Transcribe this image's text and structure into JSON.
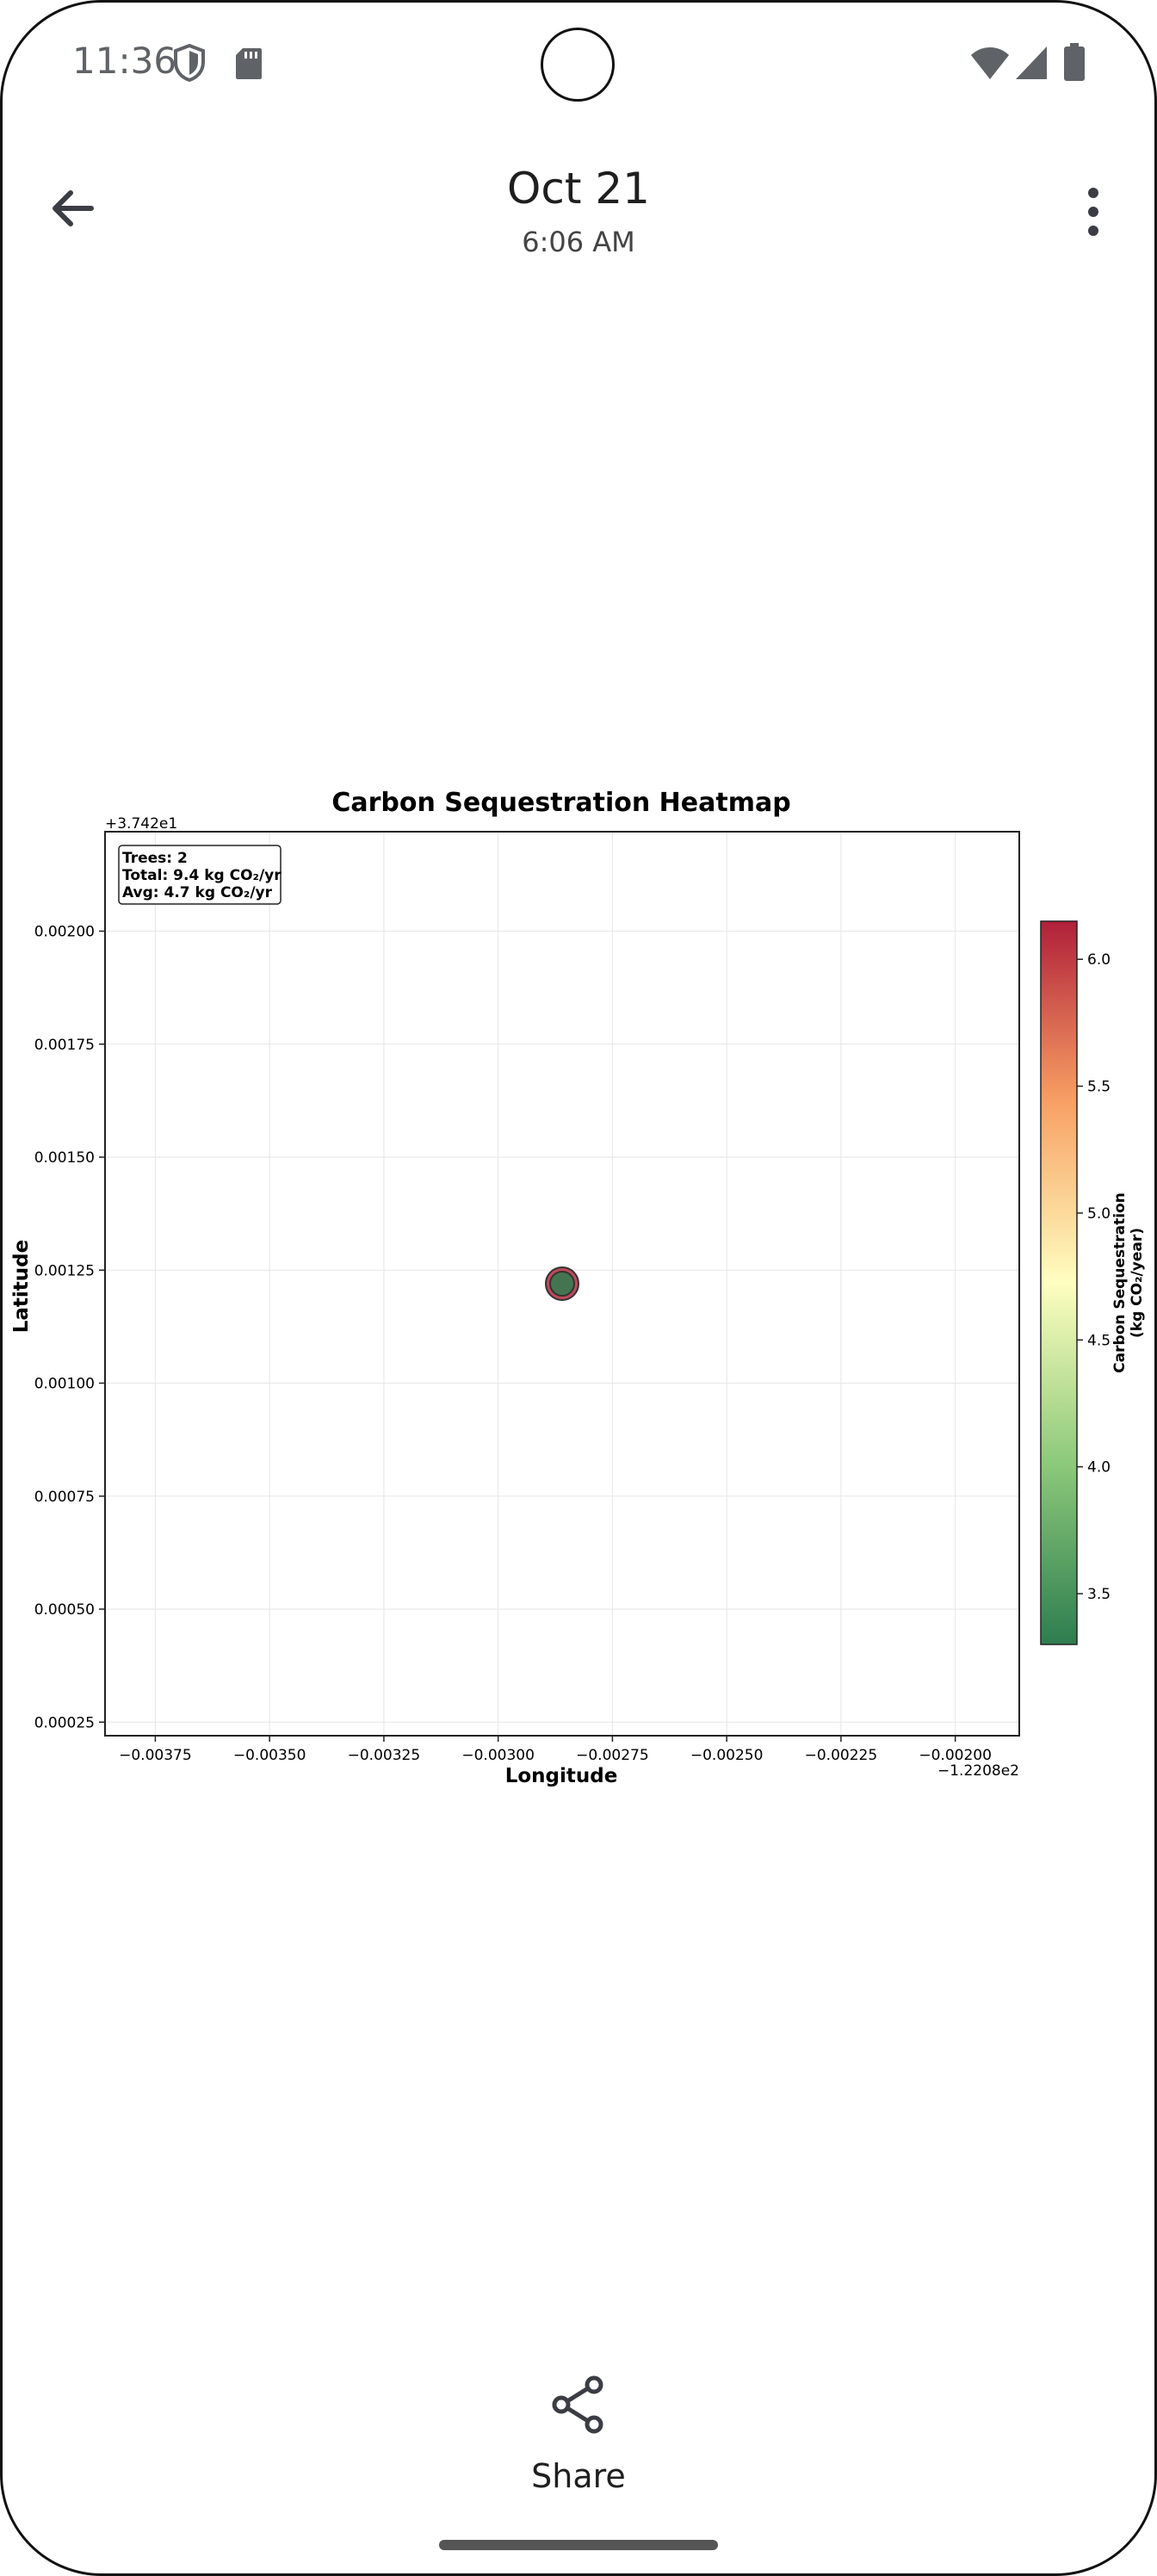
{
  "status_bar": {
    "time": "11:36"
  },
  "app_bar": {
    "date": "Oct 21",
    "time": "6:06 AM"
  },
  "chart_data": {
    "type": "scatter",
    "title": "Carbon Sequestration Heatmap",
    "xlabel": "Longitude",
    "ylabel": "Latitude",
    "x_offset_label": "−1.2208e2",
    "y_offset_label": "+3.742e1",
    "x_ticks": [
      "−0.00375",
      "−0.00350",
      "−0.00325",
      "−0.00300",
      "−0.00275",
      "−0.00250",
      "−0.00225",
      "−0.00200"
    ],
    "y_ticks": [
      "0.00025",
      "0.00050",
      "0.00075",
      "0.00100",
      "0.00125",
      "0.00150",
      "0.00175",
      "0.00200"
    ],
    "xlim": [
      -0.00386,
      -0.00186
    ],
    "ylim": [
      0.00022,
      0.00222
    ],
    "points": [
      {
        "x": -0.00286,
        "y": 0.00122,
        "value": 6.1
      },
      {
        "x": -0.00286,
        "y": 0.00122,
        "value": 3.3
      }
    ],
    "grid": true,
    "annotation": [
      "Trees: 2",
      "Total: 9.4 kg CO₂/yr",
      "Avg: 4.7 kg CO₂/yr"
    ],
    "colorbar": {
      "label_line1": "Carbon Sequestration",
      "label_line2": "(kg CO₂/year)",
      "range": [
        3.3,
        6.15
      ],
      "ticks": [
        "3.5",
        "4.0",
        "4.5",
        "5.0",
        "5.5",
        "6.0"
      ],
      "colormap": [
        "#2e7d4f",
        "#8cc97a",
        "#fefec0",
        "#f8a064",
        "#b0203a"
      ]
    }
  },
  "bottom": {
    "share_label": "Share"
  }
}
